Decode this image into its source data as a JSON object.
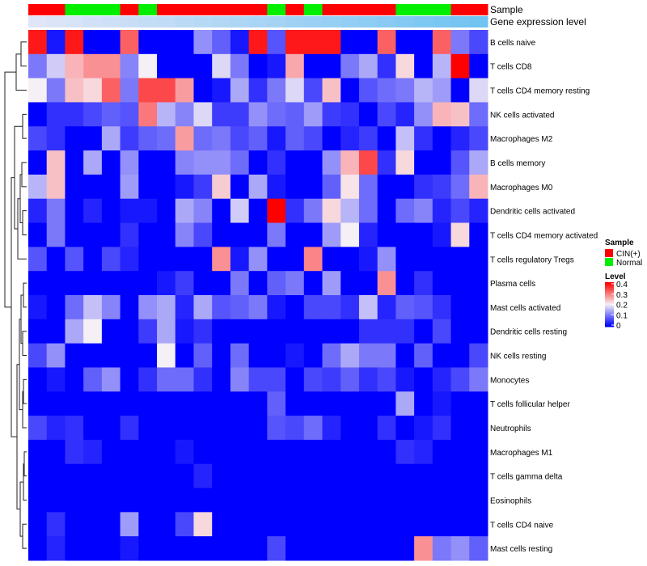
{
  "chart_data": {
    "type": "heatmap",
    "title": "",
    "annotation_labels": [
      "Sample",
      "Gene expression level"
    ],
    "sample_groups": [
      "CIN(+)",
      "CIN(+)",
      "Normal",
      "Normal",
      "Normal",
      "CIN(+)",
      "Normal",
      "CIN(+)",
      "CIN(+)",
      "CIN(+)",
      "CIN(+)",
      "CIN(+)",
      "CIN(+)",
      "Normal",
      "CIN(+)",
      "Normal",
      "CIN(+)",
      "CIN(+)",
      "CIN(+)",
      "CIN(+)",
      "Normal",
      "Normal",
      "Normal",
      "CIN(+)",
      "CIN(+)"
    ],
    "expression_gradient": [
      0.05,
      0.08,
      0.11,
      0.14,
      0.17,
      0.2,
      0.23,
      0.26,
      0.29,
      0.32,
      0.35,
      0.38,
      0.41,
      0.44,
      0.47,
      0.5,
      0.53,
      0.56,
      0.59,
      0.62,
      0.65,
      0.68,
      0.71,
      0.74,
      0.77
    ],
    "rows": [
      "B cells naive",
      "T cells CD8",
      "T cells CD4 memory resting",
      "NK cells activated",
      "Macrophages M2",
      "B cells memory",
      "Macrophages M0",
      "Dendritic cells activated",
      "T cells CD4 memory activated",
      "T cells regulatory  Tregs",
      "Plasma cells",
      "Mast cells activated",
      "Dendritic cells resting",
      "NK cells resting",
      "Monocytes",
      "T cells follicular helper",
      "Neutrophils",
      "Macrophages M1",
      "T cells gamma delta",
      "Eosinophils",
      "T cells CD4 naive",
      "Mast cells resting"
    ],
    "values": [
      [
        0.38,
        0.02,
        0.38,
        0.0,
        0.0,
        0.32,
        0.0,
        0.0,
        0.0,
        0.12,
        0.08,
        0.02,
        0.38,
        0.07,
        0.38,
        0.38,
        0.38,
        0.0,
        0.0,
        0.32,
        0.0,
        0.0,
        0.32,
        0.1,
        0.06
      ],
      [
        0.1,
        0.17,
        0.25,
        0.28,
        0.28,
        0.11,
        0.2,
        0.0,
        0.0,
        0.0,
        0.18,
        0.1,
        0.0,
        0.02,
        0.26,
        0.0,
        0.0,
        0.1,
        0.14,
        0.04,
        0.22,
        0.0,
        0.15,
        0.4,
        0.0
      ],
      [
        0.2,
        0.1,
        0.24,
        0.22,
        0.32,
        0.1,
        0.34,
        0.34,
        0.27,
        0.0,
        0.02,
        0.14,
        0.04,
        0.1,
        0.18,
        0.06,
        0.24,
        0.0,
        0.07,
        0.09,
        0.1,
        0.15,
        0.13,
        0.0,
        0.18
      ],
      [
        0.0,
        0.04,
        0.04,
        0.06,
        0.08,
        0.07,
        0.3,
        0.15,
        0.11,
        0.18,
        0.05,
        0.05,
        0.12,
        0.09,
        0.08,
        0.13,
        0.05,
        0.04,
        0.0,
        0.06,
        0.03,
        0.12,
        0.25,
        0.24,
        0.09
      ],
      [
        0.06,
        0.04,
        0.0,
        0.0,
        0.14,
        0.05,
        0.08,
        0.09,
        0.27,
        0.09,
        0.1,
        0.06,
        0.08,
        0.02,
        0.08,
        0.06,
        0.0,
        0.03,
        0.05,
        0.0,
        0.16,
        0.04,
        0.0,
        0.03,
        0.06
      ],
      [
        0.0,
        0.24,
        0.0,
        0.14,
        0.0,
        0.12,
        0.0,
        0.0,
        0.11,
        0.12,
        0.12,
        0.09,
        0.0,
        0.04,
        0.0,
        0.0,
        0.12,
        0.25,
        0.34,
        0.04,
        0.22,
        0.0,
        0.0,
        0.07,
        0.14
      ],
      [
        0.15,
        0.24,
        0.0,
        0.0,
        0.0,
        0.13,
        0.0,
        0.0,
        0.02,
        0.05,
        0.23,
        0.0,
        0.14,
        0.02,
        0.0,
        0.0,
        0.08,
        0.21,
        0.09,
        0.0,
        0.0,
        0.04,
        0.05,
        0.09,
        0.25
      ],
      [
        0.03,
        0.1,
        0.0,
        0.03,
        0.0,
        0.02,
        0.02,
        0.0,
        0.14,
        0.11,
        0.0,
        0.17,
        0.0,
        0.4,
        0.04,
        0.1,
        0.22,
        0.15,
        0.09,
        0.0,
        0.09,
        0.11,
        0.03,
        0.06,
        0.03
      ],
      [
        0.0,
        0.1,
        0.0,
        0.0,
        0.0,
        0.04,
        0.0,
        0.0,
        0.11,
        0.06,
        0.0,
        0.0,
        0.0,
        0.1,
        0.0,
        0.0,
        0.13,
        0.2,
        0.03,
        0.0,
        0.0,
        0.0,
        0.02,
        0.22,
        0.0
      ],
      [
        0.07,
        0.0,
        0.07,
        0.0,
        0.06,
        0.03,
        0.0,
        0.0,
        0.0,
        0.0,
        0.28,
        0.02,
        0.12,
        0.0,
        0.0,
        0.29,
        0.0,
        0.0,
        0.02,
        0.12,
        0.0,
        0.0,
        0.0,
        0.0,
        0.0
      ],
      [
        0.0,
        0.0,
        0.0,
        0.0,
        0.0,
        0.0,
        0.0,
        0.02,
        0.05,
        0.0,
        0.0,
        0.1,
        0.0,
        0.08,
        0.1,
        0.0,
        0.13,
        0.0,
        0.0,
        0.28,
        0.0,
        0.04,
        0.0,
        0.0,
        0.0
      ],
      [
        0.02,
        0.0,
        0.09,
        0.16,
        0.11,
        0.0,
        0.12,
        0.14,
        0.03,
        0.14,
        0.07,
        0.08,
        0.1,
        0.02,
        0.0,
        0.06,
        0.06,
        0.04,
        0.16,
        0.03,
        0.08,
        0.07,
        0.04,
        0.0,
        0.0
      ],
      [
        0.0,
        0.0,
        0.14,
        0.2,
        0.0,
        0.0,
        0.05,
        0.14,
        0.02,
        0.04,
        0.0,
        0.0,
        0.0,
        0.0,
        0.0,
        0.0,
        0.0,
        0.0,
        0.04,
        0.04,
        0.04,
        0.0,
        0.06,
        0.0,
        0.0
      ],
      [
        0.06,
        0.12,
        0.0,
        0.0,
        0.0,
        0.0,
        0.0,
        0.2,
        0.0,
        0.08,
        0.0,
        0.09,
        0.0,
        0.0,
        0.02,
        0.0,
        0.09,
        0.14,
        0.1,
        0.1,
        0.0,
        0.08,
        0.0,
        0.0,
        0.06
      ],
      [
        0.0,
        0.02,
        0.0,
        0.08,
        0.12,
        0.0,
        0.04,
        0.09,
        0.09,
        0.04,
        0.0,
        0.11,
        0.06,
        0.06,
        0.0,
        0.06,
        0.05,
        0.08,
        0.04,
        0.06,
        0.02,
        0.0,
        0.03,
        0.06,
        0.1
      ],
      [
        0.0,
        0.0,
        0.0,
        0.0,
        0.0,
        0.0,
        0.0,
        0.0,
        0.0,
        0.0,
        0.0,
        0.0,
        0.0,
        0.08,
        0.0,
        0.0,
        0.0,
        0.0,
        0.0,
        0.0,
        0.14,
        0.0,
        0.02,
        0.0,
        0.0
      ],
      [
        0.06,
        0.03,
        0.04,
        0.0,
        0.0,
        0.04,
        0.0,
        0.0,
        0.0,
        0.0,
        0.0,
        0.0,
        0.0,
        0.07,
        0.06,
        0.09,
        0.03,
        0.0,
        0.0,
        0.04,
        0.0,
        0.02,
        0.04,
        0.0,
        0.0
      ],
      [
        0.0,
        0.0,
        0.04,
        0.03,
        0.0,
        0.0,
        0.0,
        0.0,
        0.02,
        0.0,
        0.0,
        0.0,
        0.0,
        0.0,
        0.0,
        0.0,
        0.0,
        0.0,
        0.0,
        0.0,
        0.04,
        0.03,
        0.0,
        0.0,
        0.0
      ],
      [
        0.0,
        0.0,
        0.0,
        0.0,
        0.0,
        0.0,
        0.0,
        0.0,
        0.0,
        0.03,
        0.0,
        0.0,
        0.0,
        0.0,
        0.0,
        0.0,
        0.0,
        0.0,
        0.0,
        0.0,
        0.0,
        0.0,
        0.0,
        0.0,
        0.0
      ],
      [
        0.0,
        0.0,
        0.0,
        0.0,
        0.0,
        0.0,
        0.0,
        0.0,
        0.0,
        0.0,
        0.0,
        0.0,
        0.0,
        0.0,
        0.0,
        0.0,
        0.0,
        0.0,
        0.0,
        0.0,
        0.0,
        0.0,
        0.0,
        0.0,
        0.0
      ],
      [
        0.0,
        0.04,
        0.0,
        0.0,
        0.0,
        0.13,
        0.0,
        0.0,
        0.06,
        0.22,
        0.0,
        0.0,
        0.0,
        0.0,
        0.0,
        0.0,
        0.0,
        0.0,
        0.0,
        0.0,
        0.0,
        0.0,
        0.0,
        0.0,
        0.0
      ],
      [
        0.0,
        0.03,
        0.0,
        0.0,
        0.0,
        0.02,
        0.0,
        0.0,
        0.0,
        0.0,
        0.0,
        0.0,
        0.0,
        0.06,
        0.0,
        0.0,
        0.0,
        0.0,
        0.0,
        0.0,
        0.0,
        0.28,
        0.1,
        0.12,
        0.08
      ]
    ],
    "legend": {
      "sample_title": "Sample",
      "sample_entries": [
        {
          "label": "CIN(+)",
          "color": "#ff0000"
        },
        {
          "label": "Normal",
          "color": "#00ee00"
        }
      ],
      "level_title": "Level",
      "level_ticks": [
        "0.4",
        "0.3",
        "0.2",
        "0.1",
        "0"
      ],
      "level_range": [
        0,
        0.4
      ],
      "placement": "right"
    },
    "colors": {
      "low": "#0000ff",
      "mid": "#f5f0f5",
      "high": "#ff0000",
      "cin": "#ff0000",
      "normal": "#00ee00",
      "gradient_start": "#e8e8f8",
      "gradient_end": "#4db8f0"
    }
  }
}
